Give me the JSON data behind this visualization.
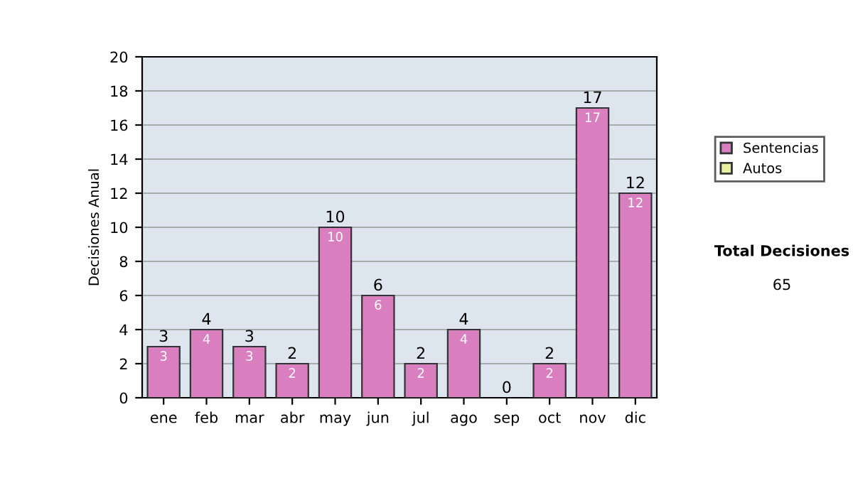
{
  "chart_data": {
    "type": "bar",
    "ylabel": "Decisiones Anual",
    "categories": [
      "ene",
      "feb",
      "mar",
      "abr",
      "may",
      "jun",
      "jul",
      "ago",
      "sep",
      "oct",
      "nov",
      "dic"
    ],
    "series": [
      {
        "name": "Sentencias",
        "color": "#d97fc0",
        "values": [
          3,
          4,
          3,
          2,
          10,
          6,
          2,
          4,
          0,
          2,
          17,
          12
        ],
        "value_labels": [
          "3",
          "4",
          "3",
          "2",
          "10",
          "6",
          "2",
          "4",
          null,
          "2",
          "17",
          "12"
        ]
      },
      {
        "name": "Autos",
        "color": "#e8f0a0",
        "values": [
          0,
          0,
          0,
          0,
          0,
          0,
          0,
          0,
          0,
          0,
          0,
          0
        ]
      }
    ],
    "stacked": true,
    "totals": [
      "3",
      "4",
      "3",
      "2",
      "10",
      "6",
      "2",
      "4",
      "0",
      "2",
      "17",
      "12"
    ],
    "ylim": [
      0,
      20
    ],
    "yticks": [
      0,
      2,
      4,
      6,
      8,
      10,
      12,
      14,
      16,
      18,
      20
    ],
    "grid": "y",
    "legend": "right",
    "annotations": [
      "Total Decisiones",
      "65"
    ]
  }
}
